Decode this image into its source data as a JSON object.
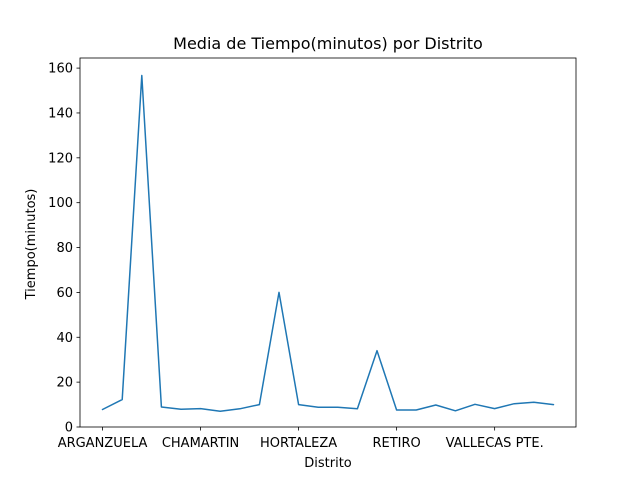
{
  "chart_data": {
    "type": "line",
    "title": "Media de Tiempo(minutos) por Distrito",
    "xlabel": "Distrito",
    "ylabel": "Tiempo(minutos)",
    "x_tick_labels": [
      {
        "label": "ARGANZUELA",
        "index": 0
      },
      {
        "label": "CHAMARTIN",
        "index": 5
      },
      {
        "label": "HORTALEZA",
        "index": 10
      },
      {
        "label": "RETIRO",
        "index": 15
      },
      {
        "label": "VALLECAS PTE.",
        "index": 20
      }
    ],
    "y_ticks": [
      0,
      20,
      40,
      60,
      80,
      100,
      120,
      140,
      160
    ],
    "ylim": [
      0,
      164.5
    ],
    "xlim": [
      -1.15,
      24.15
    ],
    "grid": false,
    "series": [
      {
        "color": "#1f77b4",
        "values": [
          7.8,
          12.2,
          156.7,
          8.9,
          7.9,
          8.2,
          7.0,
          8.1,
          10.0,
          60.0,
          10.0,
          8.8,
          8.8,
          8.1,
          34.0,
          7.6,
          7.6,
          9.8,
          7.2,
          10.1,
          8.2,
          10.4,
          11.0,
          10.0
        ]
      }
    ]
  }
}
